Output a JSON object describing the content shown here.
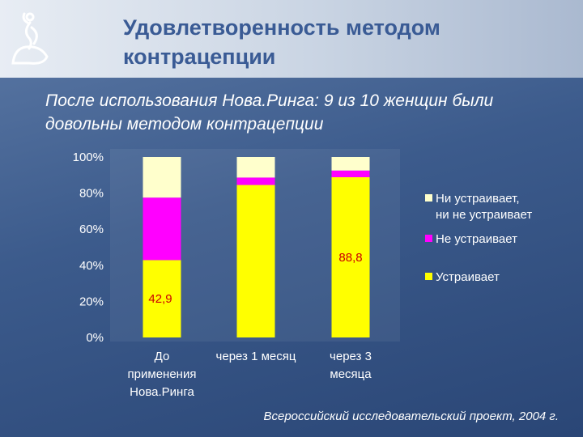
{
  "slide": {
    "title": "Удовлетворенность методом контрацепции",
    "subtitle": "После использования Нова.Ринга: 9 из 10 женщин были довольны методом контрацепции",
    "footer": "Всероссийский исследовательский проект, 2004 г.",
    "logo_icon": "woman-silhouette-logo-icon"
  },
  "chart_data": {
    "type": "bar",
    "stacked": true,
    "categories": [
      [
        "До",
        "применения",
        "Нова.Ринга"
      ],
      [
        "через 1 месяц"
      ],
      [
        "через 3",
        "месяца"
      ]
    ],
    "series": [
      {
        "name": "Устраивает",
        "color": "#ffff00",
        "values": [
          42.9,
          84.5,
          88.8
        ]
      },
      {
        "name": "Не устраивает",
        "color": "#ff00ff",
        "values": [
          34.6,
          4.1,
          3.7
        ]
      },
      {
        "name": [
          "Ни устраивает,",
          "ни не устраивает"
        ],
        "color": "#ffffcc",
        "values": [
          22.5,
          11.4,
          7.5
        ]
      }
    ],
    "data_labels": [
      {
        "category_index": 0,
        "text": "42,9"
      },
      {
        "category_index": 2,
        "text": "88,8"
      }
    ],
    "yticks": [
      "0%",
      "20%",
      "40%",
      "60%",
      "80%",
      "100%"
    ],
    "ylim": [
      0,
      100
    ],
    "legend_position": "right",
    "grid": false
  }
}
